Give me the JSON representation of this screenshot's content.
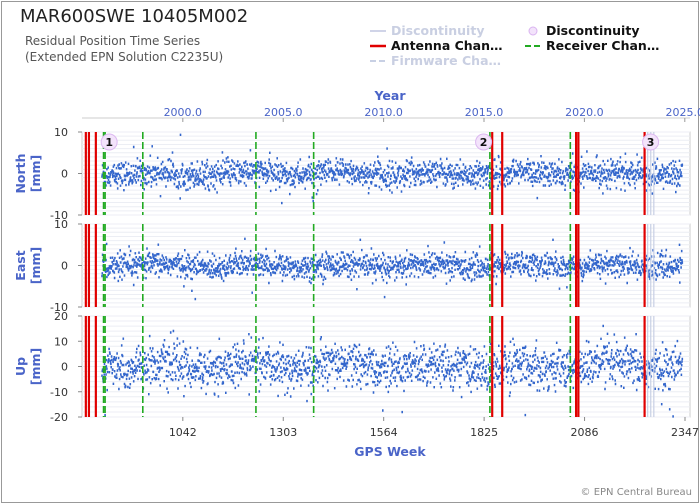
{
  "header": {
    "title": "MAR600SWE 10405M002",
    "subtitle_line1": "Residual Position Time Series",
    "subtitle_line2": "(Extended EPN Solution C2235U)"
  },
  "legend": {
    "items": [
      {
        "label": "Discontinuity",
        "style": "faint-line",
        "color": "#d0d4e8"
      },
      {
        "label": "Discontinuity",
        "style": "circle",
        "color": "#d9b3f0"
      },
      {
        "label": "Antenna Chan…",
        "style": "solid-line",
        "color": "#e00000"
      },
      {
        "label": "Receiver Chan…",
        "style": "dashed-line",
        "color": "#22aa22"
      },
      {
        "label": "Firmware Cha…",
        "style": "faint-dashed",
        "color": "#c8d0e4"
      }
    ]
  },
  "footer": {
    "copyright": "© EPN Central Bureau"
  },
  "chart_data": {
    "type": "scatter",
    "x_axis_bottom": {
      "label": "GPS Week",
      "range": [
        780,
        2360
      ],
      "ticks": [
        1042,
        1303,
        1564,
        1825,
        2086,
        2347
      ]
    },
    "x_axis_top": {
      "label": "Year",
      "ticks": [
        "2000.0",
        "2005.0",
        "2010.0",
        "2015.0",
        "2020.0",
        "2025.0"
      ]
    },
    "series_color": "#3366cc",
    "panels": [
      {
        "name": "North",
        "ylabel": "North\n[mm]",
        "ylim": [
          -10,
          10
        ],
        "ticks": [
          -10,
          0,
          10
        ],
        "noise": 1.6
      },
      {
        "name": "East",
        "ylabel": "East\n[mm]",
        "ylim": [
          -10,
          10
        ],
        "ticks": [
          -10,
          0,
          10
        ],
        "noise": 1.5
      },
      {
        "name": "Up",
        "ylabel": "Up\n[mm]",
        "ylim": [
          -20,
          20
        ],
        "ticks": [
          -20,
          -10,
          0,
          10,
          20
        ],
        "noise": 4.2
      }
    ],
    "data_start_week": 832,
    "data_end_week": 2340,
    "antenna_changes_week": [
      790,
      798,
      816,
      1846,
      1872,
      2064,
      2070,
      2242
    ],
    "receiver_changes_week": [
      836,
      840,
      938,
      1232,
      1382,
      1840,
      2049
    ],
    "discontinuity_markers": [
      {
        "label": "1",
        "week": 835
      },
      {
        "label": "2",
        "week": 1808
      },
      {
        "label": "3",
        "week": 2242
      }
    ],
    "firmware_changes_week": [
      2250,
      2258,
      2266
    ]
  }
}
